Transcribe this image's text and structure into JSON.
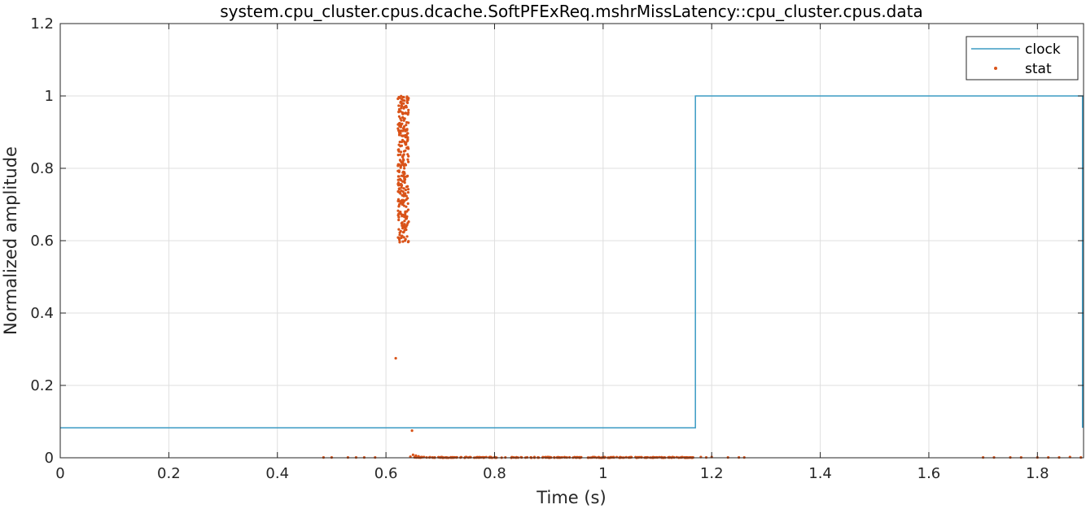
{
  "chart_data": {
    "type": "line",
    "title": "system.cpu_cluster.cpus.dcache.SoftPFExReq.mshrMissLatency::cpu_cluster.cpus.data",
    "xlabel": "Time (s)",
    "ylabel": "Normalized amplitude",
    "xlim": [
      0,
      1.885
    ],
    "ylim": [
      0,
      1.2
    ],
    "xticks": [
      0,
      0.2,
      0.4,
      0.6,
      0.8,
      1,
      1.2,
      1.4,
      1.6,
      1.8
    ],
    "xtick_labels": [
      "0",
      "0.2",
      "0.4",
      "0.6",
      "0.8",
      "1",
      "1.2",
      "1.4",
      "1.6",
      "1.8"
    ],
    "yticks": [
      0,
      0.2,
      0.4,
      0.6,
      0.8,
      1,
      1.2
    ],
    "ytick_labels": [
      "0",
      "0.2",
      "0.4",
      "0.6",
      "0.8",
      "1",
      "1.2"
    ],
    "grid": true,
    "legend_position": "top-right",
    "series": [
      {
        "name": "clock",
        "style": "step-line",
        "color": "#3b9bc4",
        "x": [
          0,
          1.17,
          1.17,
          1.883,
          1.883
        ],
        "y": [
          0.083,
          0.083,
          1.0,
          1.0,
          0.083
        ]
      },
      {
        "name": "stat",
        "style": "markers",
        "color": "#d95319",
        "x": [
          0.618,
          0.648,
          0.485,
          0.5,
          0.53,
          0.545,
          0.56,
          0.58,
          0.645,
          0.65,
          0.655,
          0.66,
          0.665,
          0.67,
          0.675,
          0.68,
          0.69,
          0.7,
          0.71,
          0.72,
          0.73,
          0.77,
          0.78,
          0.79,
          0.8,
          0.82,
          0.85,
          0.88,
          0.9,
          0.92,
          0.95,
          0.98,
          1.0,
          1.02,
          1.05,
          1.08,
          1.1,
          1.12,
          1.15,
          1.165,
          1.18,
          1.19,
          1.2,
          1.23,
          1.25,
          1.26,
          1.7,
          1.72,
          1.75,
          1.77,
          1.8,
          1.82,
          1.84,
          1.86,
          1.88
        ],
        "y": [
          0.275,
          0.075,
          0.001,
          0.001,
          0.001,
          0.001,
          0.001,
          0.001,
          0.003,
          0.008,
          0.006,
          0.004,
          0.002,
          0.002,
          0.001,
          0.001,
          0.001,
          0.001,
          0.001,
          0.001,
          0.001,
          0.001,
          0.001,
          0.001,
          0.001,
          0.001,
          0.001,
          0.001,
          0.001,
          0.001,
          0.001,
          0.001,
          0.001,
          0.001,
          0.001,
          0.001,
          0.001,
          0.001,
          0.001,
          0.001,
          0.002,
          0.001,
          0.002,
          0.001,
          0.001,
          0.001,
          0.001,
          0.001,
          0.001,
          0.001,
          0.001,
          0.001,
          0.001,
          0.002,
          0.001
        ],
        "cluster": {
          "x_range": [
            0.622,
            0.642
          ],
          "y_range": [
            0.595,
            1.0
          ],
          "count": 300,
          "note_values_estimated": true
        }
      }
    ]
  }
}
